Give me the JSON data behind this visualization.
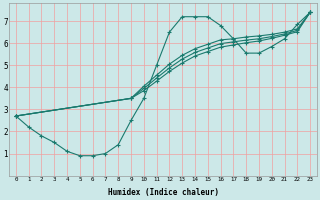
{
  "title": "",
  "xlabel": "Humidex (Indice chaleur)",
  "bg_color": "#cce8e8",
  "grid_color": "#f0a0a0",
  "line_color": "#1a7a6e",
  "xlim": [
    -0.5,
    23.5
  ],
  "ylim": [
    0,
    7.8
  ],
  "xticks": [
    0,
    1,
    2,
    3,
    4,
    5,
    6,
    7,
    8,
    9,
    10,
    11,
    12,
    13,
    14,
    15,
    16,
    17,
    18,
    19,
    20,
    21,
    22,
    23
  ],
  "yticks": [
    1,
    2,
    3,
    4,
    5,
    6,
    7
  ],
  "lines": [
    {
      "x": [
        0,
        1,
        2,
        3,
        4,
        5,
        6,
        7,
        8,
        9,
        10,
        11,
        12,
        13,
        14,
        15,
        16,
        17,
        18,
        19,
        20,
        21,
        22,
        23
      ],
      "y": [
        2.7,
        2.2,
        1.8,
        1.5,
        1.1,
        0.9,
        0.9,
        1.0,
        1.4,
        2.5,
        3.5,
        5.0,
        6.5,
        7.2,
        7.2,
        7.2,
        6.8,
        6.2,
        5.55,
        5.55,
        5.85,
        6.2,
        6.85,
        7.4
      ]
    },
    {
      "x": [
        0,
        9,
        10,
        11,
        12,
        13,
        14,
        15,
        16,
        17,
        18,
        19,
        20,
        21,
        22,
        23
      ],
      "y": [
        2.7,
        3.5,
        4.05,
        4.55,
        5.05,
        5.45,
        5.75,
        5.95,
        6.15,
        6.2,
        6.28,
        6.33,
        6.4,
        6.5,
        6.65,
        7.4
      ]
    },
    {
      "x": [
        0,
        9,
        10,
        11,
        12,
        13,
        14,
        15,
        16,
        17,
        18,
        19,
        20,
        21,
        22,
        23
      ],
      "y": [
        2.7,
        3.5,
        3.95,
        4.42,
        4.88,
        5.28,
        5.58,
        5.78,
        5.98,
        6.06,
        6.14,
        6.2,
        6.3,
        6.42,
        6.58,
        7.4
      ]
    },
    {
      "x": [
        0,
        9,
        10,
        11,
        12,
        13,
        14,
        15,
        16,
        17,
        18,
        19,
        20,
        21,
        22,
        23
      ],
      "y": [
        2.7,
        3.5,
        3.85,
        4.28,
        4.72,
        5.1,
        5.42,
        5.62,
        5.82,
        5.92,
        6.02,
        6.1,
        6.22,
        6.36,
        6.52,
        7.4
      ]
    }
  ]
}
